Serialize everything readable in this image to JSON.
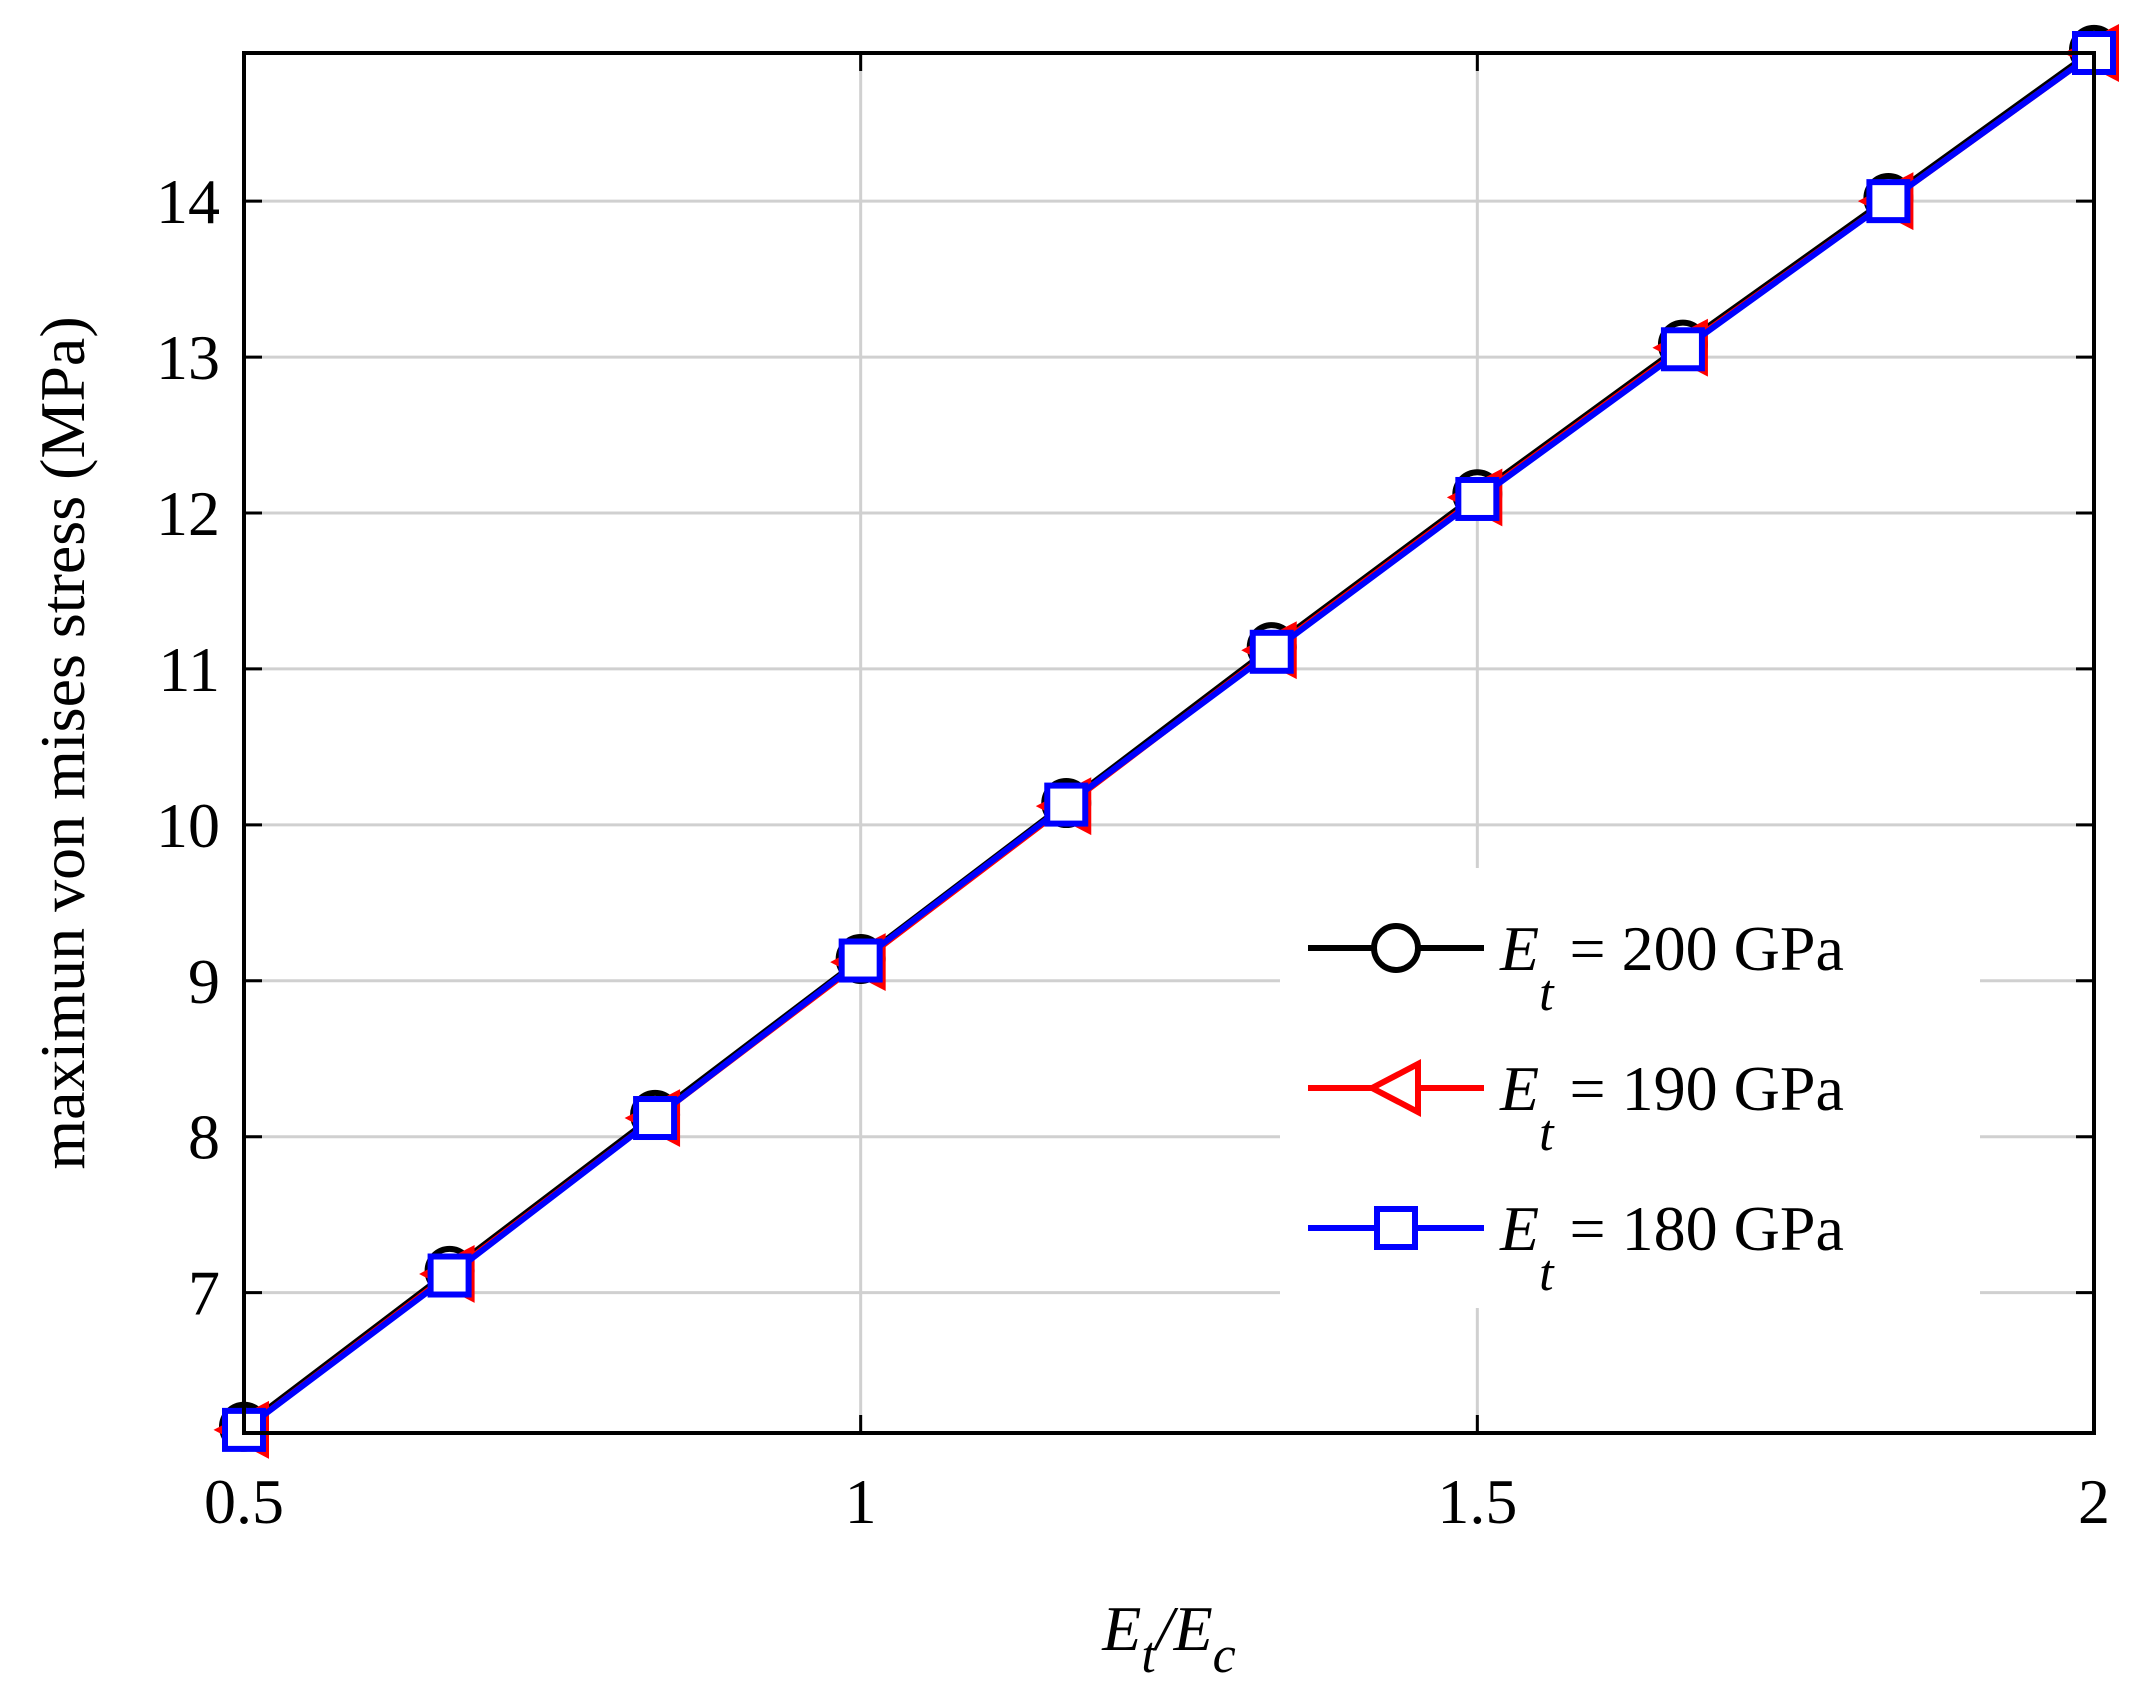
{
  "chart_data": {
    "type": "line",
    "xlabel": {
      "main": "E",
      "sub1": "t",
      "slash": "/E",
      "sub2": "c"
    },
    "ylabel": "maximun von mises stress (MPa)",
    "xlim": [
      0.5,
      2
    ],
    "ylim": [
      6.1,
      14.95
    ],
    "xticks": [
      0.5,
      1,
      1.5,
      2
    ],
    "xtick_labels": [
      "0.5",
      "1",
      "1.5",
      "2"
    ],
    "yticks": [
      7,
      8,
      9,
      10,
      11,
      12,
      13,
      14
    ],
    "ytick_labels": [
      "7",
      "8",
      "9",
      "10",
      "11",
      "12",
      "13",
      "14"
    ],
    "grid": true,
    "legend_position": "lower-right",
    "x": [
      0.5,
      0.6667,
      0.8333,
      1.0,
      1.1667,
      1.3333,
      1.5,
      1.6667,
      1.8333,
      2.0
    ],
    "series": [
      {
        "name": "E_t = 200 GPa",
        "label_main": "E",
        "label_sub": "t",
        "label_rest": " = 200 GPa",
        "color": "#000000",
        "marker": "circle",
        "values": [
          6.14,
          7.14,
          8.14,
          9.14,
          10.14,
          11.14,
          12.12,
          13.08,
          14.02,
          14.97
        ]
      },
      {
        "name": "E_t = 190 GPa",
        "label_main": "E",
        "label_sub": "t",
        "label_rest": " = 190 GPa",
        "color": "#ff0000",
        "marker": "triangle-left",
        "values": [
          6.12,
          7.12,
          8.12,
          9.12,
          10.12,
          11.12,
          12.1,
          13.06,
          14.0,
          14.95
        ]
      },
      {
        "name": "E_t = 180 GPa",
        "label_main": "E",
        "label_sub": "t",
        "label_rest": " = 180 GPa",
        "color": "#0000ff",
        "marker": "square",
        "values": [
          6.12,
          7.11,
          8.12,
          9.13,
          10.13,
          11.11,
          12.09,
          13.05,
          14.0,
          14.95
        ]
      }
    ]
  }
}
